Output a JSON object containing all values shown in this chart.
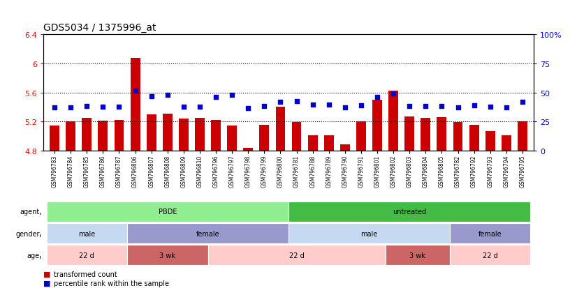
{
  "title": "GDS5034 / 1375996_at",
  "samples": [
    "GSM796783",
    "GSM796784",
    "GSM796785",
    "GSM796786",
    "GSM796787",
    "GSM796806",
    "GSM796807",
    "GSM796808",
    "GSM796809",
    "GSM796810",
    "GSM796796",
    "GSM796797",
    "GSM796798",
    "GSM796799",
    "GSM796800",
    "GSM796781",
    "GSM796788",
    "GSM796789",
    "GSM796790",
    "GSM796791",
    "GSM796801",
    "GSM796802",
    "GSM796803",
    "GSM796804",
    "GSM796805",
    "GSM796782",
    "GSM796792",
    "GSM796793",
    "GSM796794",
    "GSM796795"
  ],
  "bar_values": [
    5.15,
    5.2,
    5.25,
    5.21,
    5.22,
    6.07,
    5.3,
    5.31,
    5.24,
    5.25,
    5.22,
    5.15,
    4.84,
    5.16,
    5.4,
    5.19,
    5.01,
    5.01,
    4.89,
    5.2,
    5.5,
    5.62,
    5.27,
    5.25,
    5.26,
    5.19,
    5.16,
    5.07,
    5.01,
    5.2
  ],
  "percentile_values": [
    5.395,
    5.395,
    5.41,
    5.4,
    5.4,
    5.625,
    5.55,
    5.565,
    5.4,
    5.4,
    5.535,
    5.57,
    5.39,
    5.415,
    5.47,
    5.48,
    5.43,
    5.43,
    5.395,
    5.42,
    5.54,
    5.59,
    5.41,
    5.41,
    5.41,
    5.395,
    5.425,
    5.4,
    5.395,
    5.475
  ],
  "ylim": [
    4.8,
    6.4
  ],
  "yticks": [
    4.8,
    5.2,
    5.6,
    6.0,
    6.4
  ],
  "ytick_labels": [
    "4.8",
    "5.2",
    "5.6",
    "6",
    "6.4"
  ],
  "right_yticks": [
    0,
    25,
    50,
    75,
    100
  ],
  "right_ytick_labels": [
    "0",
    "25",
    "50",
    "75",
    "100%"
  ],
  "bar_color": "#cc0000",
  "percentile_color": "#0000cc",
  "background_color": "#ffffff",
  "agent_groups": [
    {
      "label": "PBDE",
      "start": 0,
      "end": 14,
      "color": "#90ee90"
    },
    {
      "label": "untreated",
      "start": 15,
      "end": 29,
      "color": "#44bb44"
    }
  ],
  "gender_groups": [
    {
      "label": "male",
      "start": 0,
      "end": 4,
      "color": "#c5d9f1"
    },
    {
      "label": "female",
      "start": 5,
      "end": 14,
      "color": "#9999cc"
    },
    {
      "label": "male",
      "start": 15,
      "end": 24,
      "color": "#c5d9f1"
    },
    {
      "label": "female",
      "start": 25,
      "end": 29,
      "color": "#9999cc"
    }
  ],
  "age_groups": [
    {
      "label": "22 d",
      "start": 0,
      "end": 4,
      "color": "#ffcccc"
    },
    {
      "label": "3 wk",
      "start": 5,
      "end": 9,
      "color": "#cc6666"
    },
    {
      "label": "22 d",
      "start": 10,
      "end": 20,
      "color": "#ffcccc"
    },
    {
      "label": "3 wk",
      "start": 21,
      "end": 24,
      "color": "#cc6666"
    },
    {
      "label": "22 d",
      "start": 25,
      "end": 29,
      "color": "#ffcccc"
    }
  ],
  "legend_items": [
    {
      "label": "transformed count",
      "color": "#cc0000"
    },
    {
      "label": "percentile rank within the sample",
      "color": "#0000cc"
    }
  ]
}
